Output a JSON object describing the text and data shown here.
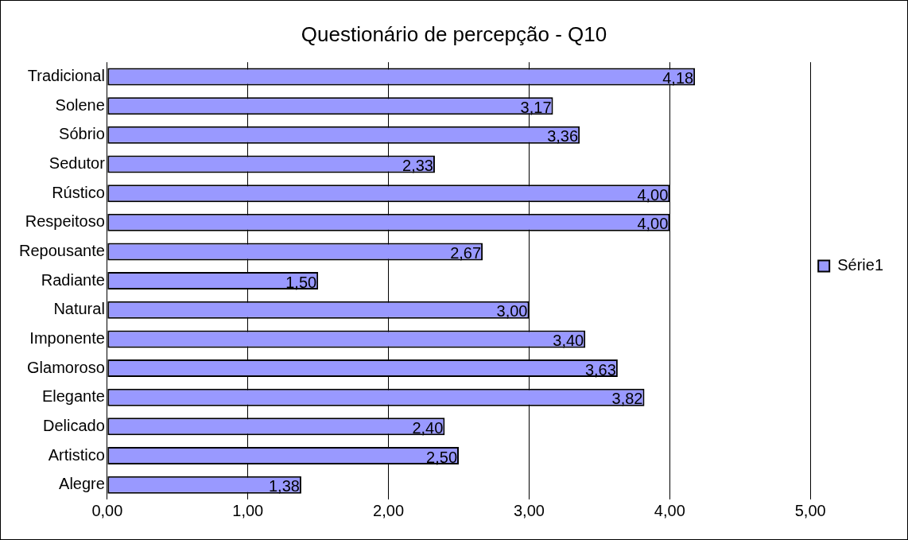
{
  "chart_data": {
    "type": "bar",
    "orientation": "horizontal",
    "title": "Questionário de percepção - Q10",
    "categories": [
      "Tradicional",
      "Solene",
      "Sóbrio",
      "Sedutor",
      "Rústico",
      "Respeitoso",
      "Repousante",
      "Radiante",
      "Natural",
      "Imponente",
      "Glamoroso",
      "Elegante",
      "Delicado",
      "Artistico",
      "Alegre"
    ],
    "series": [
      {
        "name": "Série1",
        "color": "#9999ff",
        "values": [
          4.18,
          3.17,
          3.36,
          2.33,
          4.0,
          4.0,
          2.67,
          1.5,
          3.0,
          3.4,
          3.63,
          3.82,
          2.4,
          2.5,
          1.38
        ],
        "value_labels": [
          "4,18",
          "3,17",
          "3,36",
          "2,33",
          "4,00",
          "4,00",
          "2,67",
          "1,50",
          "3,00",
          "3,40",
          "3,63",
          "3,82",
          "2,40",
          "2,50",
          "1,38"
        ]
      }
    ],
    "xlim": [
      0,
      5
    ],
    "xticks": [
      {
        "value": 0,
        "label": "0,00"
      },
      {
        "value": 1,
        "label": "1,00"
      },
      {
        "value": 2,
        "label": "2,00"
      },
      {
        "value": 3,
        "label": "3,00"
      },
      {
        "value": 4,
        "label": "4,00"
      },
      {
        "value": 5,
        "label": "5,00"
      }
    ],
    "grid": "x",
    "legend": "right"
  }
}
